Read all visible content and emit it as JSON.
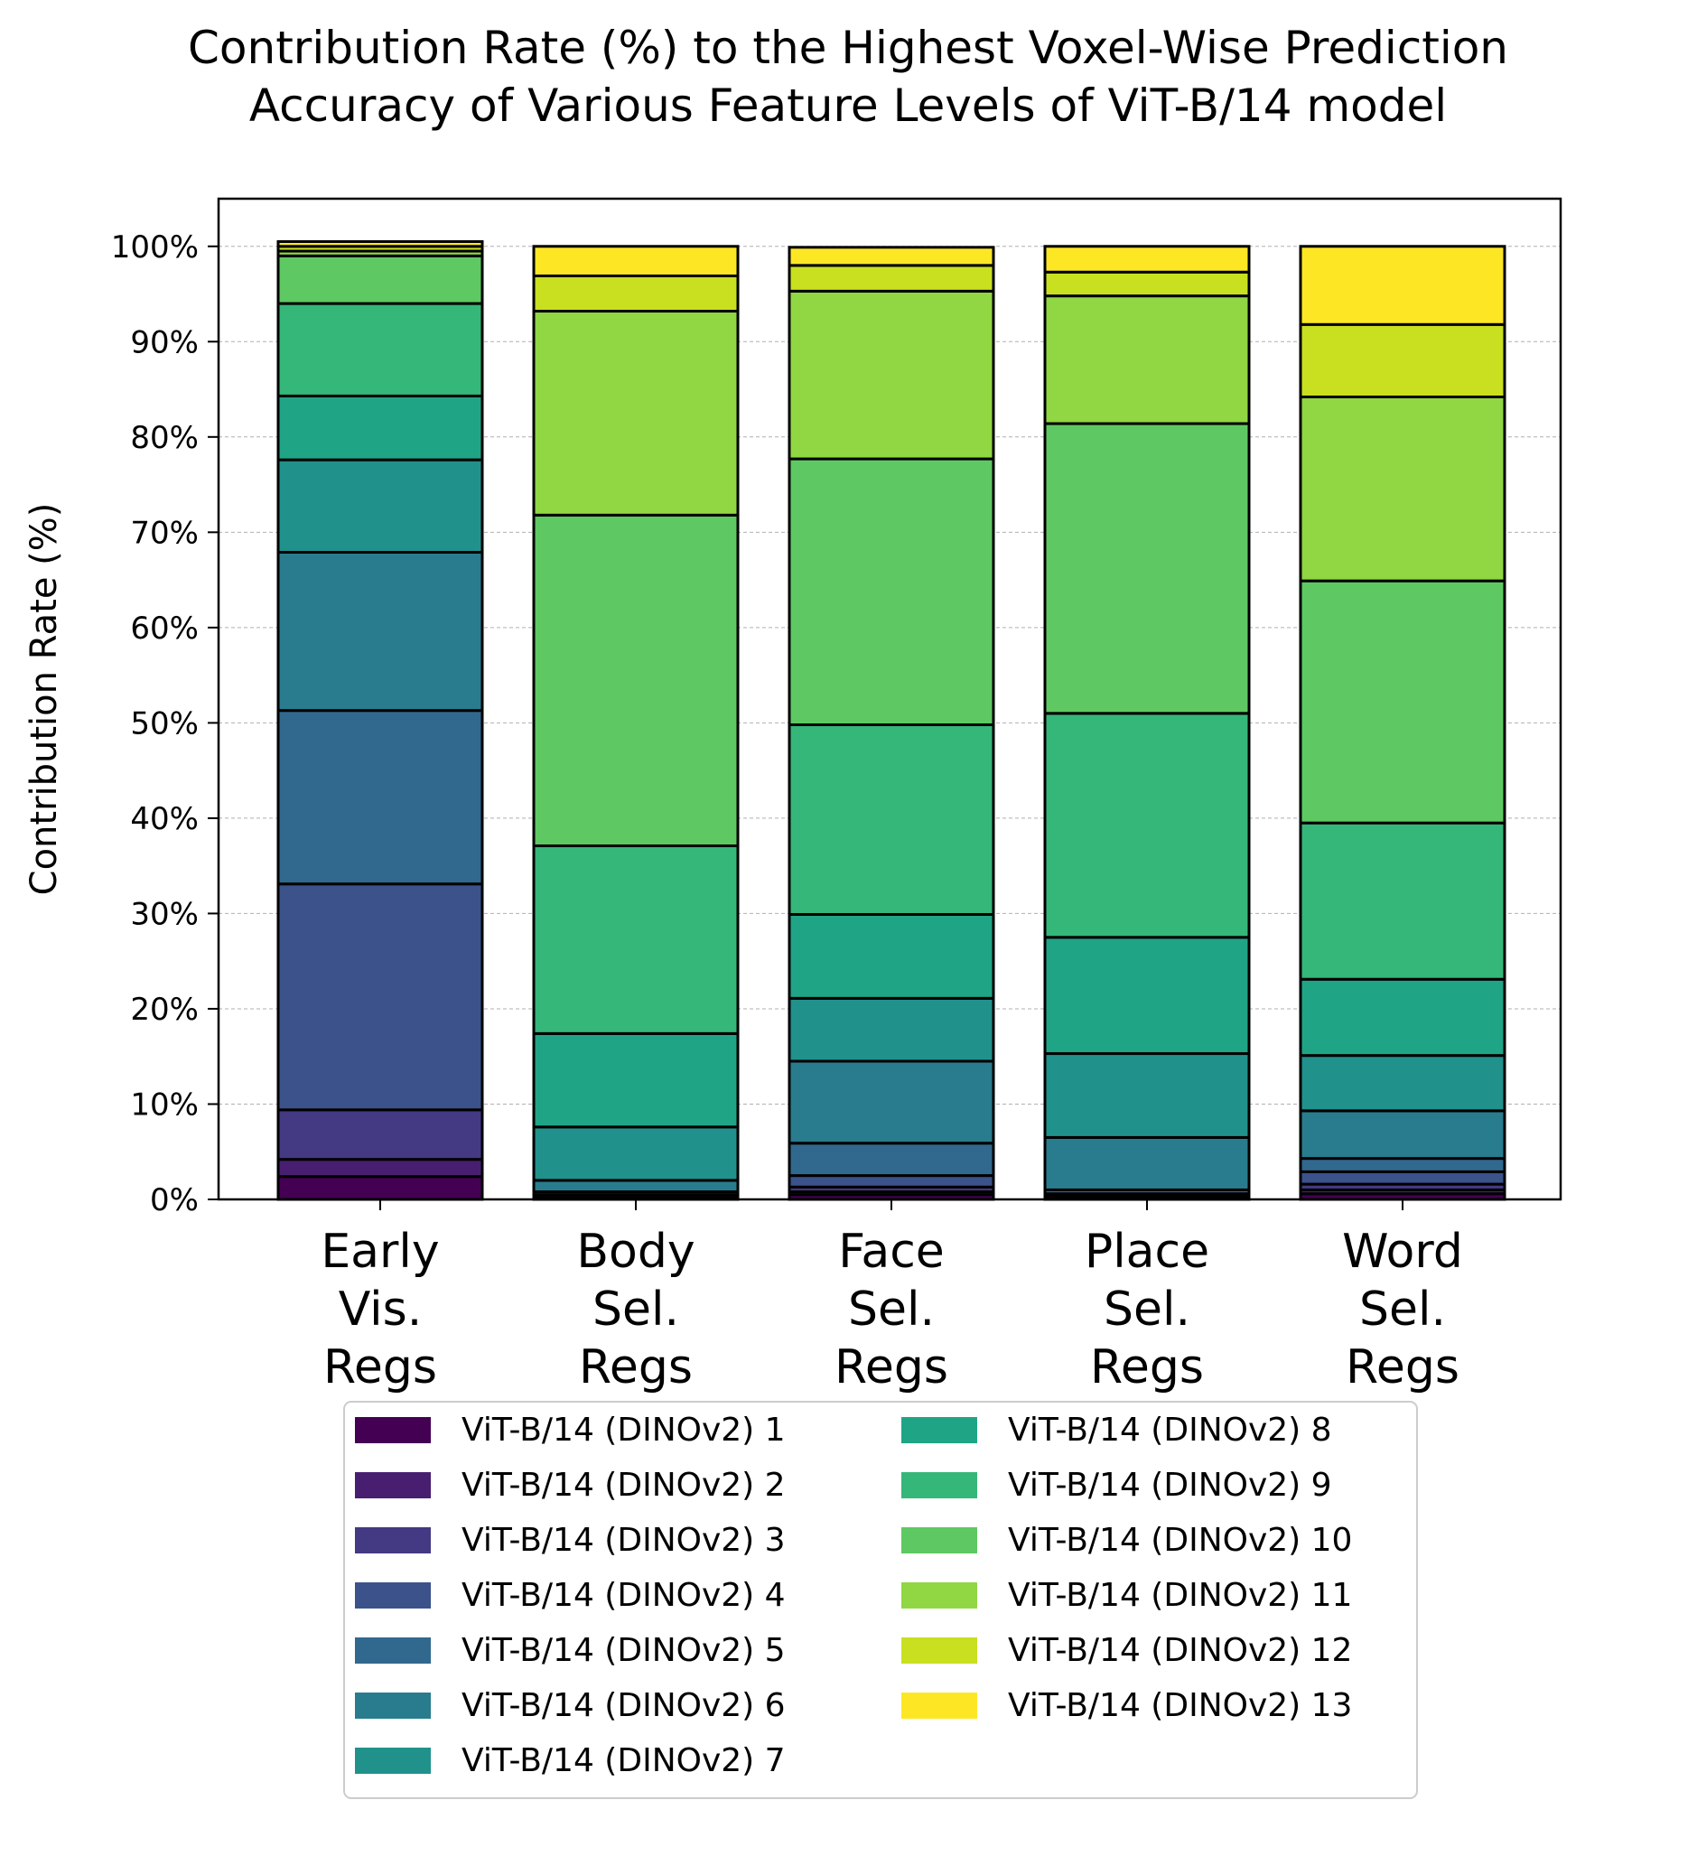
{
  "chart_data": {
    "type": "bar",
    "stacked": true,
    "title": "Contribution Rate (%) to the Highest Voxel-Wise Prediction\nAccuracy of Various Feature Levels of ViT-B/14  model",
    "xlabel": "",
    "ylabel": "Contribution Rate (%)",
    "ylim": [
      0,
      105
    ],
    "yticks": [
      0,
      10,
      20,
      30,
      40,
      50,
      60,
      70,
      80,
      90,
      100
    ],
    "ytick_labels": [
      "0%",
      "10%",
      "20%",
      "30%",
      "40%",
      "50%",
      "60%",
      "70%",
      "80%",
      "90%",
      "100%"
    ],
    "grid": true,
    "legend_position": "bottom",
    "categories": [
      "Early\nVis.\nRegs",
      "Body\nSel.\nRegs",
      "Face\nSel.\nRegs",
      "Place\nSel.\nRegs",
      "Word\nSel.\nRegs"
    ],
    "series": [
      {
        "name": "ViT-B/14 (DINOv2) 1",
        "color": "#440154",
        "values": [
          2.4,
          0.1,
          0.5,
          0.1,
          0.6
        ]
      },
      {
        "name": "ViT-B/14 (DINOv2) 2",
        "color": "#481f70",
        "values": [
          1.8,
          0.1,
          0.3,
          0.1,
          0.4
        ]
      },
      {
        "name": "ViT-B/14 (DINOv2) 3",
        "color": "#443983",
        "values": [
          5.2,
          0.1,
          0.5,
          0.2,
          0.6
        ]
      },
      {
        "name": "ViT-B/14 (DINOv2) 4",
        "color": "#3b528b",
        "values": [
          23.7,
          0.2,
          1.2,
          0.2,
          1.3
        ]
      },
      {
        "name": "ViT-B/14 (DINOv2) 5",
        "color": "#31688e",
        "values": [
          18.2,
          0.3,
          3.4,
          0.4,
          1.4
        ]
      },
      {
        "name": "ViT-B/14 (DINOv2) 6",
        "color": "#287c8e",
        "values": [
          16.6,
          1.2,
          8.6,
          5.5,
          5.0
        ]
      },
      {
        "name": "ViT-B/14 (DINOv2) 7",
        "color": "#21918c",
        "values": [
          9.7,
          5.6,
          6.6,
          8.8,
          5.8
        ]
      },
      {
        "name": "ViT-B/14 (DINOv2) 8",
        "color": "#20a486",
        "values": [
          6.7,
          9.8,
          8.8,
          12.2,
          8.0
        ]
      },
      {
        "name": "ViT-B/14 (DINOv2) 9",
        "color": "#35b779",
        "values": [
          9.7,
          19.7,
          19.9,
          23.5,
          16.4
        ]
      },
      {
        "name": "ViT-B/14 (DINOv2) 10",
        "color": "#5ec962",
        "values": [
          5.0,
          34.7,
          27.9,
          30.4,
          25.4
        ]
      },
      {
        "name": "ViT-B/14 (DINOv2) 11",
        "color": "#90d743",
        "values": [
          0.5,
          21.4,
          17.6,
          13.4,
          19.3
        ]
      },
      {
        "name": "ViT-B/14 (DINOv2) 12",
        "color": "#c8e020",
        "values": [
          0.5,
          3.7,
          2.7,
          2.5,
          7.6
        ]
      },
      {
        "name": "ViT-B/14 (DINOv2) 13",
        "color": "#fde725",
        "values": [
          0.5,
          3.1,
          1.9,
          2.7,
          8.2
        ]
      }
    ]
  }
}
